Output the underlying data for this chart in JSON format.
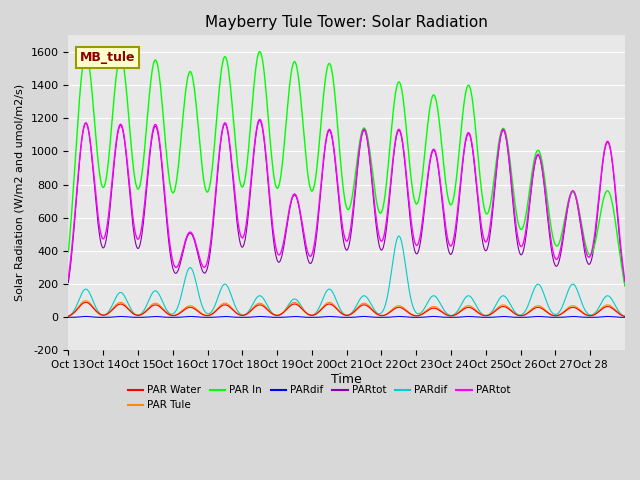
{
  "title": "Mayberry Tule Tower: Solar Radiation",
  "ylabel": "Solar Radiation (W/m2 and umol/m2/s)",
  "xlabel": "Time",
  "ylim": [
    -200,
    1700
  ],
  "yticks": [
    -200,
    0,
    200,
    400,
    600,
    800,
    1000,
    1200,
    1400,
    1600
  ],
  "x_labels": [
    "Oct 13",
    "Oct 14",
    "Oct 15",
    "Oct 16",
    "Oct 17",
    "Oct 18",
    "Oct 19",
    "Oct 20",
    "Oct 21",
    "Oct 22",
    "Oct 23",
    "Oct 24",
    "Oct 25",
    "Oct 26",
    "Oct 27",
    "Oct 28"
  ],
  "legend_entries": [
    {
      "label": "PAR Water",
      "color": "#ff0000"
    },
    {
      "label": "PAR Tule",
      "color": "#ff8800"
    },
    {
      "label": "PAR In",
      "color": "#00ff00"
    },
    {
      "label": "PARdif",
      "color": "#0000ff"
    },
    {
      "label": "PARtot",
      "color": "#8800aa"
    },
    {
      "label": "PARdif",
      "color": "#00cccc"
    },
    {
      "label": "PARtot",
      "color": "#ff00ff"
    }
  ],
  "label_box": "MB_tule",
  "n_days": 16,
  "day_peaks": {
    "green": [
      1580,
      1560,
      1540,
      1470,
      1560,
      1590,
      1530,
      1520,
      1130,
      1410,
      1330,
      1390,
      1130,
      1000,
      750,
      760
    ],
    "magenta": [
      1170,
      1160,
      1160,
      510,
      1170,
      1190,
      740,
      1130,
      1130,
      1130,
      1010,
      1110,
      1130,
      980,
      760,
      1060
    ],
    "purple": [
      1170,
      1155,
      1150,
      505,
      1165,
      1185,
      735,
      1125,
      1125,
      1125,
      1005,
      1105,
      1125,
      975,
      755,
      1055
    ],
    "red": [
      90,
      80,
      75,
      60,
      75,
      75,
      80,
      80,
      75,
      60,
      55,
      60,
      65,
      60,
      60,
      65
    ],
    "orange": [
      100,
      90,
      85,
      70,
      85,
      85,
      90,
      90,
      85,
      70,
      65,
      70,
      75,
      70,
      70,
      75
    ],
    "blue": [
      5,
      5,
      5,
      5,
      5,
      5,
      5,
      5,
      5,
      5,
      5,
      5,
      5,
      5,
      5,
      5
    ],
    "cyan": [
      170,
      150,
      160,
      300,
      200,
      130,
      110,
      170,
      130,
      490,
      130,
      130,
      130,
      200,
      200,
      130
    ]
  }
}
